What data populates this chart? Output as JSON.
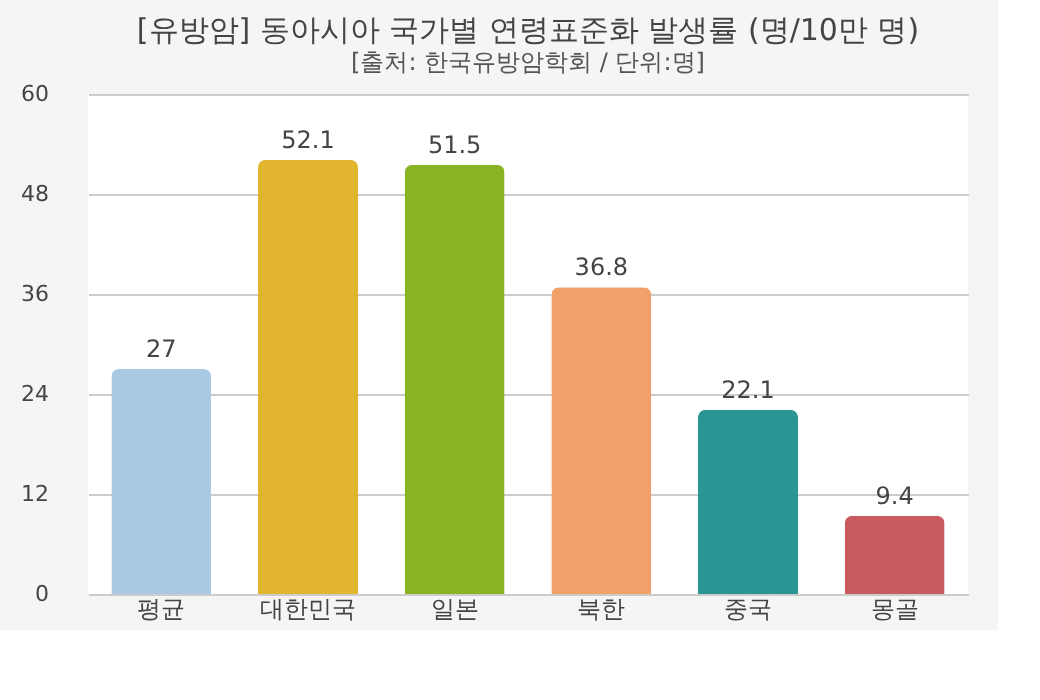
{
  "chart_data": {
    "type": "bar",
    "title": "[유방암] 동아시아 국가별 연령표준화 발생률 (명/10만 명)",
    "subtitle": "[출처: 한국유방암학회 / 단위:명]",
    "categories": [
      "평균",
      "대한민국",
      "일본",
      "북한",
      "중국",
      "몽골"
    ],
    "values": [
      27,
      52.1,
      51.5,
      36.8,
      22.1,
      9.4
    ],
    "colors": [
      "#a9c8e4",
      "#e2b52e",
      "#8ab424",
      "#f0a068",
      "#2a9694",
      "#c85a60"
    ],
    "ylim": [
      0,
      60
    ],
    "yticks": [
      0,
      12,
      24,
      36,
      48,
      60
    ],
    "grid": "y",
    "data_labels": true
  }
}
